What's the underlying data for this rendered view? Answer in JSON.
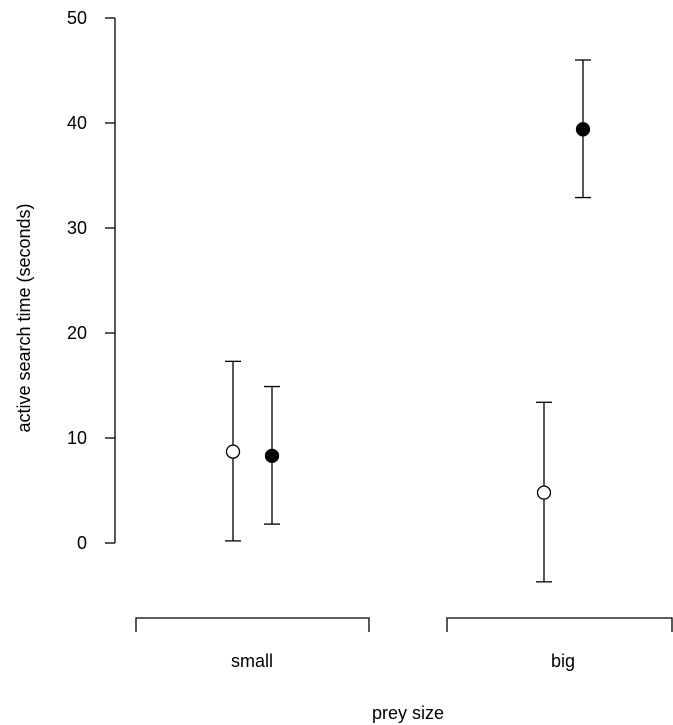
{
  "chart_data": {
    "type": "scatter",
    "title": "",
    "xlabel": "prey size",
    "ylabel": "active search time (seconds)",
    "ylim": [
      0,
      50
    ],
    "yticks": [
      0,
      10,
      20,
      30,
      40,
      50
    ],
    "categories": [
      "small",
      "big"
    ],
    "grid": false,
    "legend": "none",
    "series": [
      {
        "marker": "open-circle",
        "color": "#ffffff",
        "values": [
          8.7,
          4.8
        ],
        "lower": [
          0.2,
          -3.7
        ],
        "upper": [
          17.3,
          13.4
        ]
      },
      {
        "marker": "filled-circle",
        "color": "#000000",
        "values": [
          8.3,
          39.4
        ],
        "lower": [
          1.8,
          32.9
        ],
        "upper": [
          14.9,
          46.0
        ]
      }
    ]
  }
}
